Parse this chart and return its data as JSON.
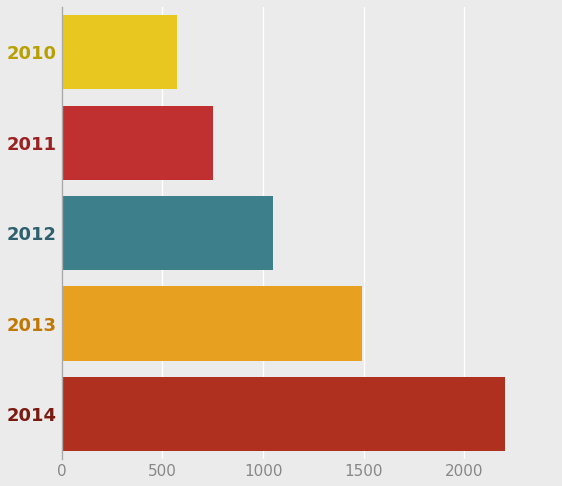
{
  "categories": [
    "2014",
    "2013",
    "2012",
    "2011",
    "2010"
  ],
  "values": [
    2200,
    1490,
    1050,
    750,
    570
  ],
  "bar_colors": [
    "#b03020",
    "#e8a020",
    "#3d7f8a",
    "#c03030",
    "#e8c820"
  ],
  "ylabel_colors": [
    "#7a1a10",
    "#c07800",
    "#2e6070",
    "#9b2020",
    "#b8a000"
  ],
  "background_color": "#ebebeb",
  "xlim": [
    0,
    2450
  ],
  "xticks": [
    0,
    500,
    1000,
    1500,
    2000
  ],
  "grid_color": "#ffffff",
  "bar_height": 0.82,
  "tick_fontsize": 11,
  "ylabel_fontsize": 13
}
